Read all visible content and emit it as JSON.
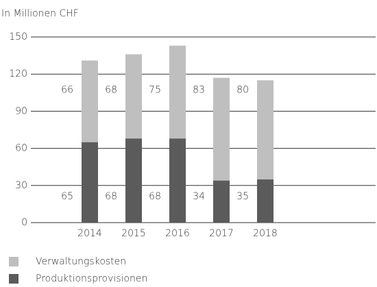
{
  "chart_data": {
    "type": "stacked_bar",
    "title": "In Millionen CHF",
    "categories": [
      "2014",
      "2015",
      "2016",
      "2017",
      "2018"
    ],
    "series": [
      {
        "name": "Verwaltungskosten",
        "color": "#bfbfbf",
        "values": [
          66,
          68,
          75,
          83,
          80
        ]
      },
      {
        "name": "Produktionsprovisionen",
        "color": "#5b5b5b",
        "values": [
          65,
          68,
          68,
          34,
          35
        ]
      }
    ],
    "ylim": [
      0,
      150
    ],
    "yticks": [
      0,
      30,
      60,
      90,
      120,
      150
    ],
    "grid": true
  }
}
